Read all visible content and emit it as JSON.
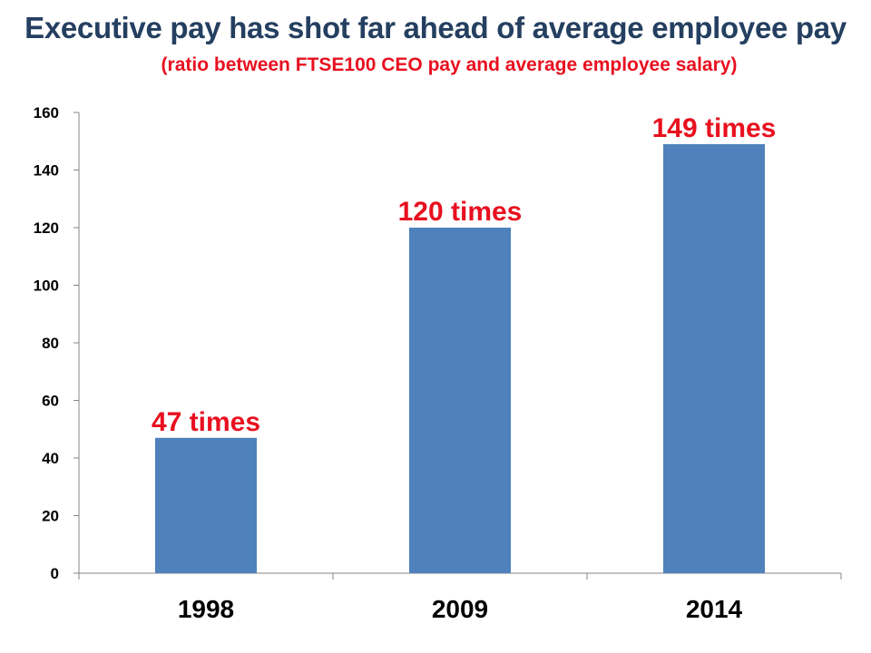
{
  "title": "Executive pay has shot far ahead of average employee pay",
  "subtitle": "(ratio between FTSE100 CEO pay and average employee salary)",
  "colors": {
    "title": "#243f60",
    "subtitle": "#e8101f",
    "bar": "#4f81bd",
    "data_label": "#e8101f",
    "axis": "#868686"
  },
  "chart_data": {
    "type": "bar",
    "categories": [
      "1998",
      "2009",
      "2014"
    ],
    "values": [
      47,
      120,
      149
    ],
    "data_labels": [
      "47 times",
      "120 times",
      "149 times"
    ],
    "ylim": [
      0,
      160
    ],
    "yticks": [
      0,
      20,
      40,
      60,
      80,
      100,
      120,
      140,
      160
    ],
    "grid": false,
    "legend": "none"
  }
}
